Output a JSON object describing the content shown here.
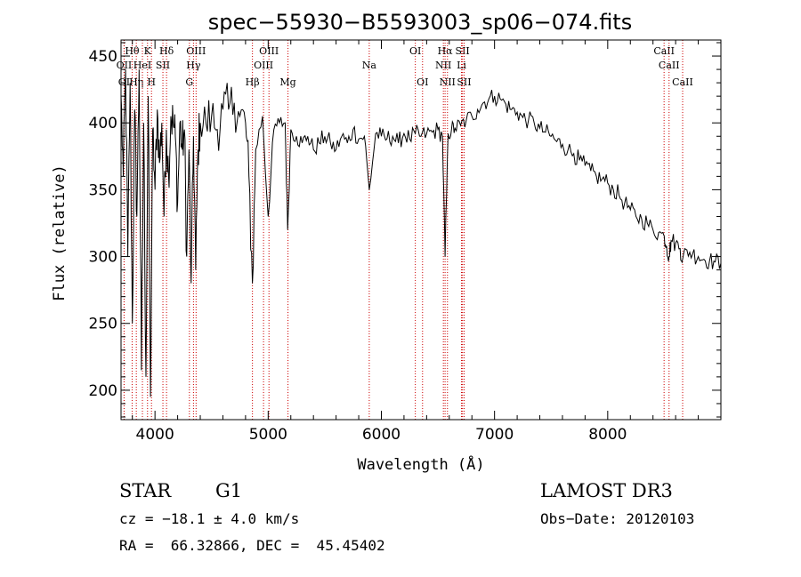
{
  "chart_data": {
    "type": "line",
    "title": "spec−55930−B5593003_sp06−074.fits",
    "xlabel": "Wavelength (Å)",
    "ylabel": "Flux (relative)",
    "xlim": [
      3700,
      9000
    ],
    "ylim": [
      178,
      462
    ],
    "xticks": [
      4000,
      5000,
      6000,
      7000,
      8000
    ],
    "yticks": [
      200,
      250,
      300,
      350,
      400,
      450
    ],
    "series": [
      {
        "name": "flux",
        "x": [
          3700,
          3720,
          3740,
          3760,
          3780,
          3800,
          3820,
          3840,
          3860,
          3880,
          3900,
          3920,
          3940,
          3960,
          3980,
          4000,
          4020,
          4040,
          4060,
          4080,
          4100,
          4120,
          4140,
          4160,
          4180,
          4200,
          4220,
          4240,
          4260,
          4280,
          4300,
          4320,
          4340,
          4360,
          4380,
          4400,
          4450,
          4500,
          4550,
          4600,
          4650,
          4700,
          4750,
          4800,
          4830,
          4861,
          4890,
          4950,
          5000,
          5050,
          5100,
          5150,
          5172,
          5200,
          5250,
          5300,
          5350,
          5400,
          5450,
          5500,
          5550,
          5600,
          5650,
          5700,
          5750,
          5800,
          5850,
          5893,
          5950,
          6000,
          6050,
          6100,
          6150,
          6200,
          6250,
          6300,
          6350,
          6400,
          6450,
          6500,
          6540,
          6563,
          6590,
          6620,
          6650,
          6700,
          6750,
          6800,
          6850,
          6900,
          6950,
          7000,
          7050,
          7100,
          7150,
          7200,
          7250,
          7300,
          7350,
          7400,
          7450,
          7500,
          7550,
          7600,
          7650,
          7700,
          7750,
          7800,
          7850,
          7900,
          7950,
          8000,
          8050,
          8100,
          8150,
          8200,
          8250,
          8300,
          8350,
          8400,
          8450,
          8500,
          8520,
          8542,
          8560,
          8600,
          8640,
          8662,
          8700,
          8750,
          8800,
          8850,
          8900,
          8950,
          9000
        ],
        "values": [
          420,
          360,
          440,
          300,
          430,
          250,
          410,
          330,
          440,
          215,
          400,
          210,
          420,
          195,
          395,
          350,
          410,
          370,
          400,
          330,
          395,
          360,
          405,
          400,
          390,
          340,
          400,
          380,
          395,
          300,
          380,
          280,
          390,
          290,
          380,
          400,
          400,
          405,
          395,
          410,
          410,
          415,
          405,
          400,
          360,
          280,
          380,
          405,
          330,
          395,
          400,
          400,
          320,
          395,
          390,
          385,
          390,
          380,
          385,
          390,
          385,
          380,
          390,
          385,
          395,
          388,
          390,
          350,
          392,
          390,
          388,
          390,
          385,
          392,
          388,
          392,
          390,
          392,
          393,
          395,
          390,
          300,
          392,
          395,
          396,
          398,
          402,
          405,
          410,
          415,
          418,
          420,
          418,
          414,
          410,
          408,
          404,
          402,
          400,
          396,
          393,
          390,
          386,
          384,
          380,
          377,
          372,
          368,
          364,
          360,
          358,
          355,
          350,
          346,
          340,
          335,
          330,
          328,
          325,
          320,
          318,
          315,
          308,
          300,
          312,
          310,
          306,
          298,
          305,
          302,
          300,
          298,
          297,
          296,
          295
        ]
      }
    ],
    "spectral_lines": [
      {
        "label": "Hθ",
        "wavelength": 3798,
        "row": 1
      },
      {
        "label": "OII",
        "wavelength": 3727,
        "row": 2
      },
      {
        "label": "OI",
        "wavelength": 3727,
        "row": 3
      },
      {
        "label": "Hη",
        "wavelength": 3835,
        "row": 3
      },
      {
        "label": "K",
        "wavelength": 3934,
        "row": 1
      },
      {
        "label": "HeI",
        "wavelength": 3889,
        "row": 2
      },
      {
        "label": "SII",
        "wavelength": 4070,
        "row": 2
      },
      {
        "label": "H",
        "wavelength": 3969,
        "row": 3
      },
      {
        "label": "Hδ",
        "wavelength": 4102,
        "row": 1
      },
      {
        "label": "OIII",
        "wavelength": 4363,
        "row": 1
      },
      {
        "label": "Hγ",
        "wavelength": 4340,
        "row": 2
      },
      {
        "label": "G",
        "wavelength": 4304,
        "row": 3
      },
      {
        "label": "Hβ",
        "wavelength": 4861,
        "row": 3
      },
      {
        "label": "OIII",
        "wavelength": 5007,
        "row": 1
      },
      {
        "label": "OIII",
        "wavelength": 4959,
        "row": 2
      },
      {
        "label": "Mg",
        "wavelength": 5175,
        "row": 3
      },
      {
        "label": "Na",
        "wavelength": 5893,
        "row": 2
      },
      {
        "label": "OI",
        "wavelength": 6300,
        "row": 1
      },
      {
        "label": "OI",
        "wavelength": 6364,
        "row": 3
      },
      {
        "label": "Hα",
        "wavelength": 6563,
        "row": 1
      },
      {
        "label": "NII",
        "wavelength": 6548,
        "row": 2
      },
      {
        "label": "NII",
        "wavelength": 6584,
        "row": 3
      },
      {
        "label": "SII",
        "wavelength": 6717,
        "row": 1
      },
      {
        "label": "Li",
        "wavelength": 6708,
        "row": 2
      },
      {
        "label": "SII",
        "wavelength": 6731,
        "row": 3
      },
      {
        "label": "CaII",
        "wavelength": 8498,
        "row": 1
      },
      {
        "label": "CaII",
        "wavelength": 8542,
        "row": 2
      },
      {
        "label": "CaII",
        "wavelength": 8662,
        "row": 3
      }
    ]
  },
  "info": {
    "class_label": "STAR",
    "subclass_label": "G1",
    "survey": "LAMOST DR3",
    "redshift": "cz = −18.1 ± 4.0 km/s",
    "obs_date": "Obs−Date: 20120103",
    "coords": "RA =  66.32866, DEC =  45.45402"
  },
  "colors": {
    "line_marker": "#cc0000",
    "spectrum": "#000000",
    "axes": "#000000"
  }
}
